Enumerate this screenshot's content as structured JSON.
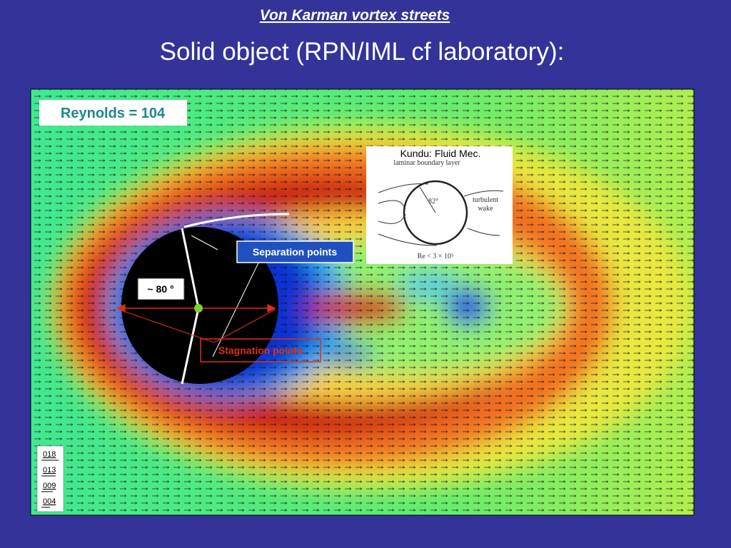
{
  "header": {
    "title": "Von Karman vortex streets",
    "subtitle": "Solid object (RPN/IML cf laboratory):"
  },
  "figure": {
    "reynolds_label": "Reynolds = 104",
    "separation_label": "Separation points",
    "angle_label": "~ 80 °",
    "stagnation_label": "Stagnation points",
    "inset": {
      "caption": "Kundu: Fluid Mec.",
      "boundary_layer": "laminar boundary layer",
      "angle": "82°",
      "wake": [
        "turbulent",
        "wake"
      ],
      "reynolds": "Re < 3 × 10⁵"
    },
    "legend": [
      "018",
      "013",
      "009",
      "004"
    ]
  }
}
